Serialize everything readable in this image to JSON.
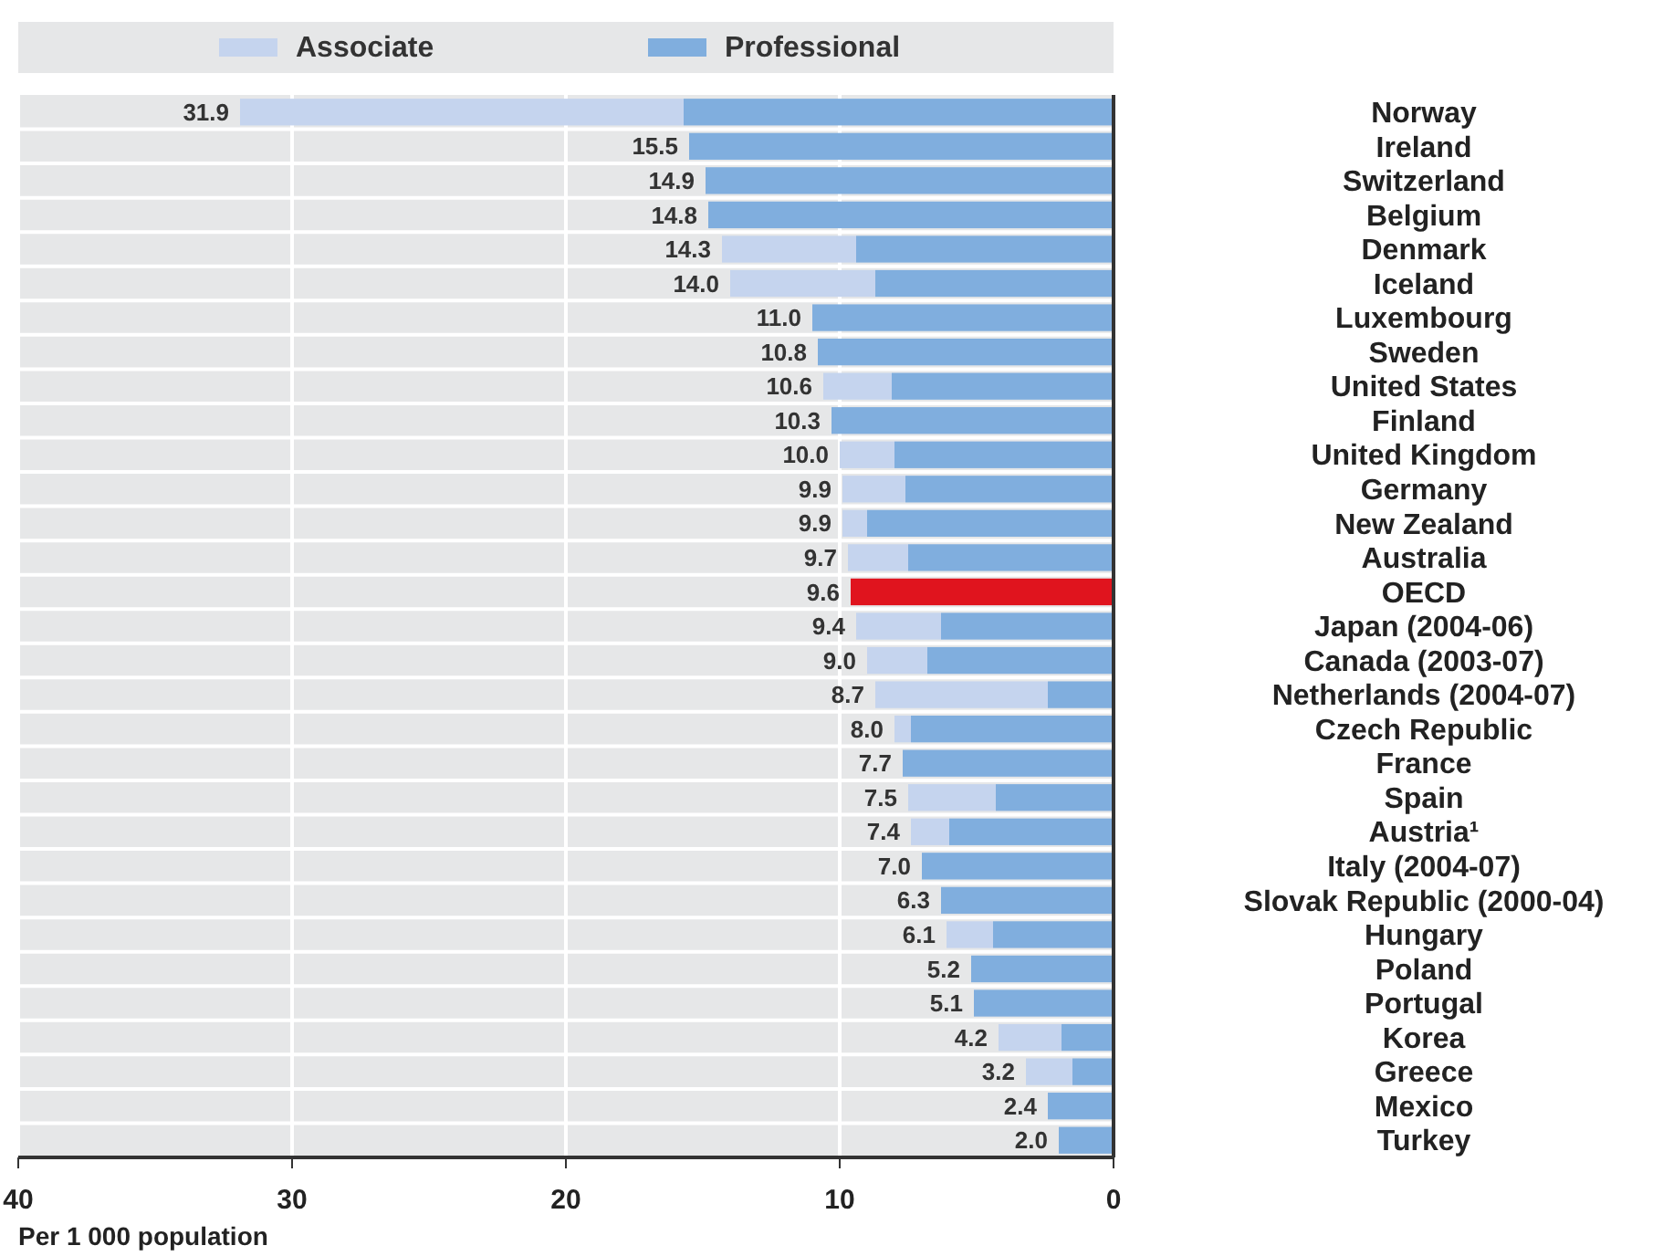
{
  "chart_data": {
    "type": "bar",
    "orientation": "horizontal",
    "stacked": true,
    "categories": [
      "Norway",
      "Ireland",
      "Switzerland",
      "Belgium",
      "Denmark",
      "Iceland",
      "Luxembourg",
      "Sweden",
      "United States",
      "Finland",
      "United Kingdom",
      "Germany",
      "New Zealand",
      "Australia",
      "OECD",
      "Japan (2004-06)",
      "Canada (2003-07)",
      "Netherlands (2004-07)",
      "Czech Republic",
      "France",
      "Spain",
      "Austria¹",
      "Italy (2004-07)",
      "Slovak Republic (2000-04)",
      "Hungary",
      "Poland",
      "Portugal",
      "Korea",
      "Greece",
      "Mexico",
      "Turkey"
    ],
    "series": [
      {
        "name": "Professional",
        "color": "#80aede",
        "colors": [
          "#80aede",
          "#80aede",
          "#80aede",
          "#80aede",
          "#80aede",
          "#80aede",
          "#80aede",
          "#80aede",
          "#80aede",
          "#80aede",
          "#80aede",
          "#80aede",
          "#80aede",
          "#80aede",
          "#e0141e",
          "#80aede",
          "#80aede",
          "#80aede",
          "#80aede",
          "#80aede",
          "#80aede",
          "#80aede",
          "#80aede",
          "#80aede",
          "#80aede",
          "#80aede",
          "#80aede",
          "#80aede",
          "#80aede",
          "#80aede",
          "#80aede"
        ],
        "values": [
          15.7,
          15.5,
          14.9,
          14.8,
          9.4,
          8.7,
          11.0,
          10.8,
          8.1,
          10.3,
          8.0,
          7.6,
          9.0,
          7.5,
          9.6,
          6.3,
          6.8,
          2.4,
          7.4,
          7.7,
          4.3,
          6.0,
          7.0,
          6.3,
          4.4,
          5.2,
          5.1,
          1.9,
          1.5,
          2.4,
          2.0
        ]
      },
      {
        "name": "Associate",
        "color": "#c5d4ee",
        "values": [
          16.2,
          0,
          0,
          0,
          4.9,
          5.3,
          0,
          0,
          2.5,
          0,
          2.0,
          2.3,
          0.9,
          2.2,
          0,
          3.1,
          2.2,
          6.3,
          0.6,
          0,
          3.2,
          1.4,
          0,
          0,
          1.7,
          0,
          0,
          2.3,
          1.7,
          0,
          0
        ]
      }
    ],
    "totals": [
      "31.9",
      "15.5",
      "14.9",
      "14.8",
      "14.3",
      "14.0",
      "11.0",
      "10.8",
      "10.6",
      "10.3",
      "10.0",
      "9.9",
      "9.9",
      "9.7",
      "9.6",
      "9.4",
      "9.0",
      "8.7",
      "8.0",
      "7.7",
      "7.5",
      "7.4",
      "7.0",
      "6.3",
      "6.1",
      "5.2",
      "5.1",
      "4.2",
      "3.2",
      "2.4",
      "2.0"
    ],
    "xlim": [
      40,
      0
    ],
    "xticks": [
      40,
      30,
      20,
      10,
      0
    ],
    "xlabel": "Per 1 000 population",
    "grid": true,
    "legend": "top"
  }
}
